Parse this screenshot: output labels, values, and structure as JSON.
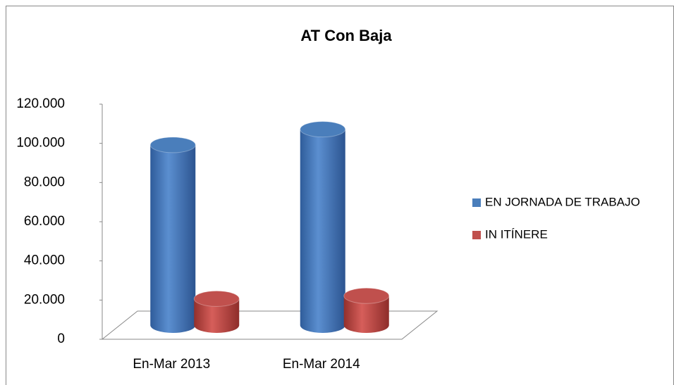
{
  "chart_data": {
    "type": "bar3d",
    "title": "AT Con Baja",
    "categories": [
      "En-Mar 2013",
      "En-Mar 2014"
    ],
    "series": [
      {
        "name": "EN JORNADA DE TRABAJO",
        "color": "#4a7ebb",
        "values": [
          92000,
          100000
        ]
      },
      {
        "name": "IN ITÍNERE",
        "color": "#c0504d",
        "values": [
          13500,
          15000
        ]
      }
    ],
    "ylim": [
      0,
      120000
    ],
    "yticks": [
      0,
      {
        "value": 20000,
        "label": "20.000"
      },
      {
        "value": 40000,
        "label": "40.000"
      },
      {
        "value": 60000,
        "label": "60.000"
      },
      {
        "value": 80000,
        "label": "80.000"
      },
      {
        "value": 100000,
        "label": "100.000"
      },
      {
        "value": 120000,
        "label": "120.000"
      }
    ],
    "legend": "right"
  }
}
